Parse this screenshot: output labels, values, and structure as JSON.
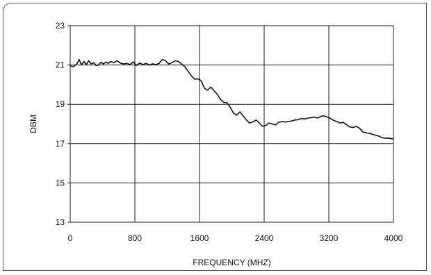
{
  "chart_data": {
    "type": "line",
    "title": "",
    "xlabel": "FREQUENCY (MHZ)",
    "ylabel": "DBM",
    "xlim": [
      0,
      4000
    ],
    "ylim": [
      13,
      23
    ],
    "xticks": [
      0,
      800,
      1600,
      2400,
      3200,
      4000
    ],
    "yticks": [
      13,
      15,
      17,
      19,
      21,
      23
    ],
    "xtick_labels": [
      "0",
      "800",
      "1600",
      "2400",
      "3200",
      "4000"
    ],
    "ytick_labels": [
      "13",
      "15",
      "17",
      "19",
      "21",
      "23"
    ],
    "grid": true,
    "legend": "none",
    "series": [
      {
        "x": [
          0,
          40,
          80,
          110,
          140,
          170,
          200,
          230,
          260,
          290,
          320,
          350,
          380,
          410,
          440,
          470,
          500,
          540,
          580,
          620,
          660,
          700,
          740,
          780,
          820,
          860,
          900,
          940,
          980,
          1020,
          1060,
          1100,
          1140,
          1180,
          1220,
          1260,
          1300,
          1340,
          1380,
          1420,
          1460,
          1500,
          1540,
          1580,
          1620,
          1660,
          1700,
          1740,
          1780,
          1820,
          1860,
          1900,
          1940,
          1980,
          2020,
          2060,
          2100,
          2140,
          2180,
          2220,
          2260,
          2300,
          2340,
          2380,
          2420,
          2460,
          2500,
          2540,
          2580,
          2620,
          2660,
          2700,
          2740,
          2780,
          2820,
          2860,
          2900,
          2940,
          2980,
          3020,
          3060,
          3100,
          3140,
          3180,
          3220,
          3260,
          3300,
          3340,
          3380,
          3420,
          3460,
          3500,
          3540,
          3580,
          3620,
          3660,
          3700,
          3740,
          3780,
          3820,
          3860,
          3900,
          3940,
          3980,
          4000
        ],
        "values": [
          20.95,
          20.92,
          21.05,
          21.28,
          21.0,
          21.18,
          21.02,
          21.22,
          21.05,
          21.12,
          20.98,
          21.0,
          21.14,
          21.05,
          21.15,
          21.08,
          21.18,
          21.12,
          21.22,
          21.1,
          21.05,
          21.08,
          21.02,
          21.16,
          20.98,
          21.1,
          21.02,
          21.08,
          21.0,
          21.06,
          21.02,
          21.08,
          21.28,
          21.22,
          21.05,
          21.12,
          21.22,
          21.18,
          21.05,
          20.9,
          20.68,
          20.45,
          20.28,
          20.3,
          20.2,
          19.82,
          19.72,
          19.88,
          19.7,
          19.5,
          19.25,
          19.1,
          19.08,
          18.85,
          18.55,
          18.45,
          18.62,
          18.42,
          18.2,
          18.05,
          18.1,
          18.2,
          18.05,
          17.88,
          17.92,
          18.05,
          18.0,
          17.95,
          18.08,
          18.12,
          18.1,
          18.12,
          18.15,
          18.2,
          18.22,
          18.28,
          18.25,
          18.3,
          18.32,
          18.35,
          18.3,
          18.38,
          18.42,
          18.35,
          18.28,
          18.18,
          18.12,
          18.05,
          18.08,
          17.95,
          17.85,
          17.82,
          17.88,
          17.78,
          17.6,
          17.55,
          17.52,
          17.48,
          17.42,
          17.38,
          17.3,
          17.28,
          17.28,
          17.25,
          17.22
        ]
      }
    ]
  }
}
